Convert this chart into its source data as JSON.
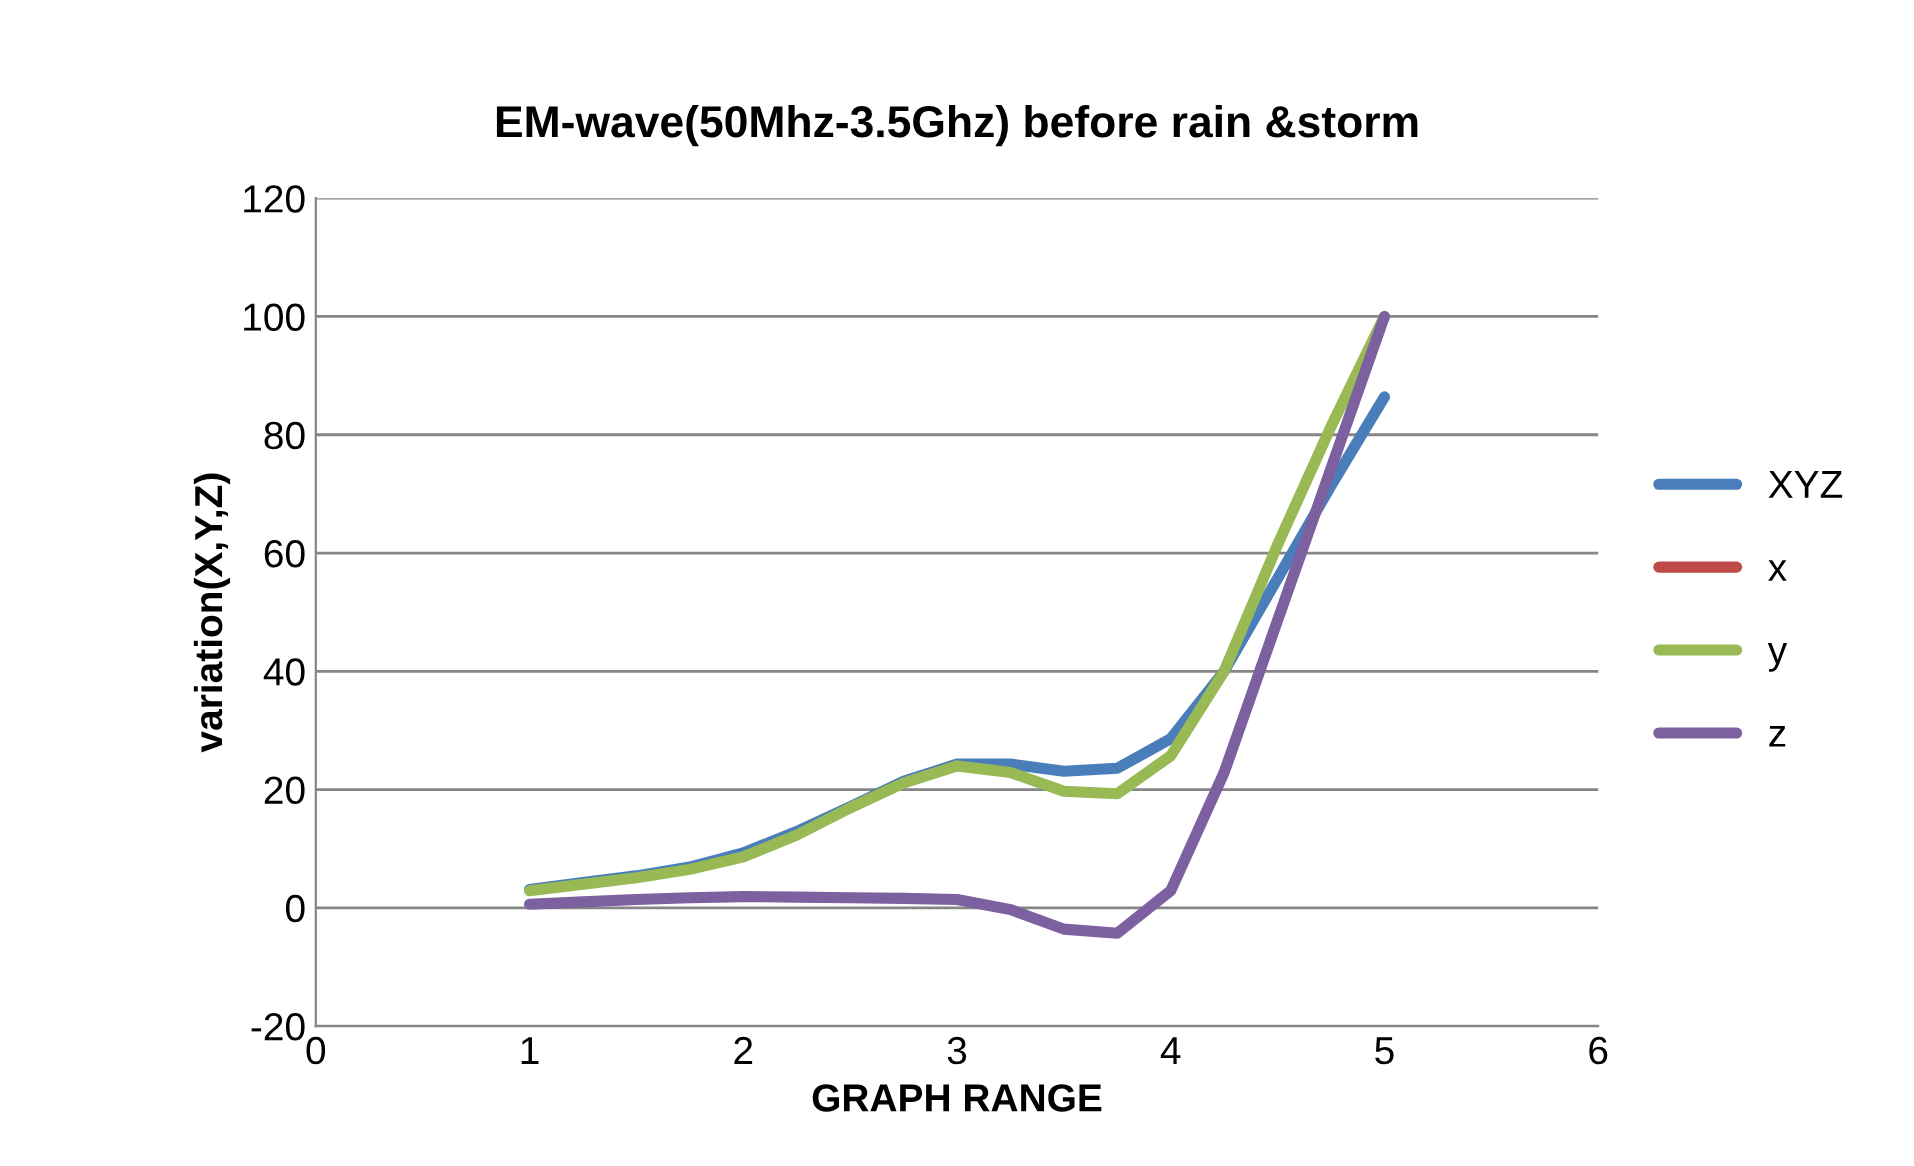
{
  "chart_data": {
    "type": "line",
    "title": "EM-wave(50Mhz-3.5Ghz) before rain &storm",
    "xlabel": "GRAPH RANGE",
    "ylabel": "variation(X,Y,Z)",
    "x": [
      1,
      1.25,
      1.5,
      1.75,
      2,
      2.25,
      2.5,
      2.75,
      3,
      3.25,
      3.5,
      3.75,
      4,
      4.25,
      4.5,
      4.75,
      5
    ],
    "series": [
      {
        "name": "XYZ",
        "color": "#4a7ebb",
        "values": [
          3.1,
          4.3,
          5.4,
          6.9,
          9.3,
          12.9,
          17.1,
          21.4,
          24.3,
          24.3,
          23.1,
          23.6,
          28.6,
          40,
          55.7,
          71.4,
          86.4
        ]
      },
      {
        "name": "x",
        "color": "#be4b48",
        "values": [
          null,
          null,
          null,
          null,
          null,
          null,
          null,
          null,
          null,
          null,
          null,
          null,
          null,
          null,
          null,
          null,
          null
        ]
      },
      {
        "name": "y",
        "color": "#98b954",
        "values": [
          2.9,
          4,
          5.1,
          6.5,
          8.6,
          12.3,
          16.9,
          21.1,
          24,
          22.9,
          19.7,
          19.3,
          25.7,
          40,
          61.4,
          81.4,
          100
        ]
      },
      {
        "name": "z",
        "color": "#7d60a0",
        "values": [
          0.6,
          1,
          1.4,
          1.7,
          1.9,
          1.8,
          1.7,
          1.6,
          1.4,
          -0.3,
          -3.6,
          -4.3,
          2.9,
          22.9,
          48.6,
          74.3,
          100
        ]
      }
    ],
    "xlim": [
      0,
      6
    ],
    "xticks": [
      0,
      1,
      2,
      3,
      4,
      5,
      6
    ],
    "ylim": [
      -20,
      120
    ],
    "yticks": [
      -20,
      0,
      20,
      40,
      60,
      80,
      100,
      120
    ],
    "grid": "y",
    "legend": "right",
    "marker": "none",
    "line_style": "solid"
  }
}
